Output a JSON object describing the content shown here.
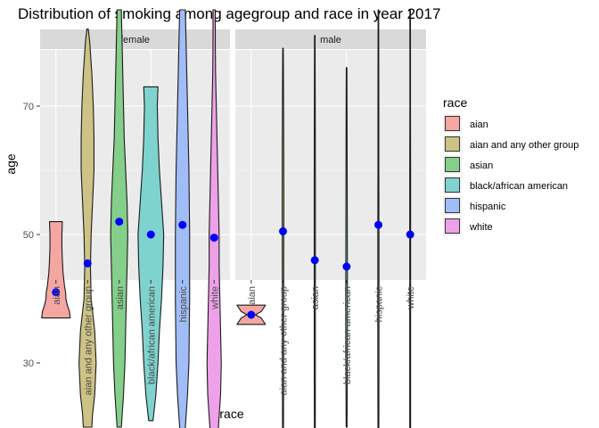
{
  "chart_data": {
    "type": "violin",
    "title": "Distribution of smoking among agegroup and race in year 2017",
    "xlabel": "race",
    "ylabel": "age",
    "ylim": [
      15,
      82
    ],
    "yticks": [
      30,
      50,
      70
    ],
    "grid": true,
    "legend_position": "right",
    "legend_title": "race",
    "categories": [
      "aian",
      "aian and any other group",
      "asian",
      "black/african american",
      "hispanic",
      "white"
    ],
    "colors": {
      "aian": "#F4A6A1",
      "aian and any other group": "#CEC386",
      "asian": "#84CF8A",
      "black/african american": "#7FD3CF",
      "hispanic": "#A1BDF7",
      "white": "#EEA1E8"
    },
    "panel_bg": "#EBEBEB",
    "strip_bg": "#D9D9D9",
    "point_color": "#0000FF",
    "facets": [
      {
        "label": "female",
        "violins": [
          {
            "category": "aian",
            "mean": 41,
            "profile": [
              [
                37,
                1
              ],
              [
                38,
                0.95
              ],
              [
                39,
                0.8
              ],
              [
                40,
                0.7
              ],
              [
                41,
                0.68
              ],
              [
                42,
                0.6
              ],
              [
                44,
                0.5
              ],
              [
                46,
                0.45
              ],
              [
                48,
                0.42
              ],
              [
                50,
                0.42
              ],
              [
                52,
                0.45
              ]
            ]
          },
          {
            "category": "aian and any other group",
            "mean": 45.5,
            "profile": [
              [
                20,
                0.3
              ],
              [
                22,
                0.35
              ],
              [
                25,
                0.5
              ],
              [
                30,
                0.6
              ],
              [
                35,
                0.5
              ],
              [
                40,
                0.25
              ],
              [
                45,
                0.2
              ],
              [
                50,
                0.25
              ],
              [
                55,
                0.35
              ],
              [
                60,
                0.45
              ],
              [
                65,
                0.45
              ],
              [
                70,
                0.4
              ],
              [
                75,
                0.3
              ],
              [
                80,
                0.15
              ],
              [
                82,
                0.05
              ]
            ]
          },
          {
            "category": "asian",
            "mean": 52,
            "profile": [
              [
                20,
                0.15
              ],
              [
                25,
                0.3
              ],
              [
                30,
                0.4
              ],
              [
                35,
                0.45
              ],
              [
                40,
                0.5
              ],
              [
                45,
                0.55
              ],
              [
                50,
                0.6
              ],
              [
                55,
                0.55
              ],
              [
                60,
                0.45
              ],
              [
                65,
                0.35
              ],
              [
                70,
                0.3
              ],
              [
                75,
                0.25
              ],
              [
                80,
                0.2
              ],
              [
                85,
                0.15
              ]
            ]
          },
          {
            "category": "black/african american",
            "mean": 50,
            "profile": [
              [
                21,
                0.15
              ],
              [
                25,
                0.35
              ],
              [
                30,
                0.5
              ],
              [
                35,
                0.6
              ],
              [
                40,
                0.75
              ],
              [
                45,
                0.85
              ],
              [
                50,
                0.9
              ],
              [
                55,
                0.75
              ],
              [
                60,
                0.6
              ],
              [
                65,
                0.5
              ],
              [
                70,
                0.45
              ],
              [
                73,
                0.5
              ]
            ]
          },
          {
            "category": "hispanic",
            "mean": 51.5,
            "profile": [
              [
                17,
                0.1
              ],
              [
                20,
                0.2
              ],
              [
                25,
                0.35
              ],
              [
                30,
                0.45
              ],
              [
                40,
                0.5
              ],
              [
                50,
                0.5
              ],
              [
                60,
                0.45
              ],
              [
                70,
                0.35
              ],
              [
                80,
                0.25
              ],
              [
                85,
                0.2
              ]
            ]
          },
          {
            "category": "white",
            "mean": 49.5,
            "profile": [
              [
                18,
                0.15
              ],
              [
                20,
                0.3
              ],
              [
                25,
                0.45
              ],
              [
                30,
                0.5
              ],
              [
                35,
                0.45
              ],
              [
                40,
                0.4
              ],
              [
                45,
                0.35
              ],
              [
                50,
                0.35
              ],
              [
                55,
                0.3
              ],
              [
                60,
                0.25
              ],
              [
                65,
                0.2
              ],
              [
                70,
                0.15
              ],
              [
                75,
                0.1
              ],
              [
                80,
                0.08
              ],
              [
                85,
                0.08
              ]
            ]
          }
        ]
      },
      {
        "label": "male",
        "violins": [
          {
            "category": "aian",
            "mean": 37.5,
            "profile": [
              [
                36,
                1
              ],
              [
                37,
                0.7
              ],
              [
                37.5,
                0.3
              ],
              [
                38,
                0.7
              ],
              [
                39,
                1
              ]
            ]
          },
          {
            "category": "aian and any other group",
            "mean": 50.5,
            "profile": [
              [
                19,
                0.03
              ],
              [
                25,
                0.04
              ],
              [
                35,
                0.04
              ],
              [
                45,
                0.05
              ],
              [
                55,
                0.06
              ],
              [
                65,
                0.05
              ],
              [
                75,
                0.03
              ],
              [
                79,
                0.02
              ]
            ]
          },
          {
            "category": "asian",
            "mean": 46,
            "profile": [
              [
                19,
                0.03
              ],
              [
                30,
                0.04
              ],
              [
                40,
                0.04
              ],
              [
                50,
                0.04
              ],
              [
                60,
                0.04
              ],
              [
                70,
                0.03
              ],
              [
                81,
                0.02
              ]
            ]
          },
          {
            "category": "black/african american",
            "mean": 45,
            "profile": [
              [
                20,
                0.03
              ],
              [
                30,
                0.05
              ],
              [
                40,
                0.06
              ],
              [
                50,
                0.05
              ],
              [
                60,
                0.04
              ],
              [
                70,
                0.03
              ],
              [
                76,
                0.02
              ]
            ]
          },
          {
            "category": "hispanic",
            "mean": 51.5,
            "profile": [
              [
                18,
                0.03
              ],
              [
                30,
                0.04
              ],
              [
                40,
                0.04
              ],
              [
                50,
                0.04
              ],
              [
                60,
                0.03
              ],
              [
                70,
                0.03
              ],
              [
                85,
                0.02
              ]
            ]
          },
          {
            "category": "white",
            "mean": 50,
            "profile": [
              [
                19,
                0.03
              ],
              [
                30,
                0.03
              ],
              [
                40,
                0.03
              ],
              [
                50,
                0.03
              ],
              [
                60,
                0.03
              ],
              [
                70,
                0.02
              ],
              [
                85,
                0.02
              ]
            ]
          }
        ]
      }
    ]
  }
}
